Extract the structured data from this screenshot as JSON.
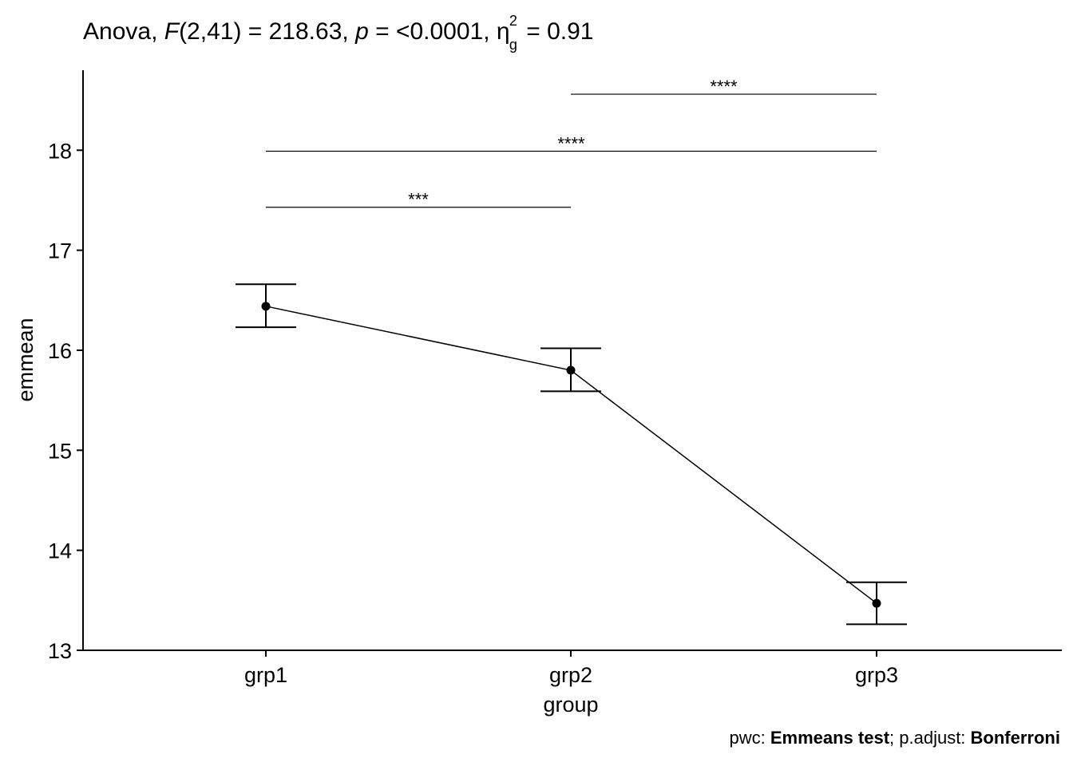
{
  "title": {
    "prefix": "Anova, ",
    "f_symbol": "F",
    "f_args": "(2,41) = 218.63, ",
    "p_symbol": "p",
    "p_value": " = <0.0001, ",
    "eta_symbol": "η",
    "eta_sup": "2",
    "eta_sub": "g",
    "eta_value": "= 0.91"
  },
  "caption": {
    "pwc_label": "pwc: ",
    "pwc_value": "Emmeans test",
    "sep": "; p.adjust: ",
    "adjust_value": "Bonferroni"
  },
  "chart_data": {
    "type": "line",
    "xlabel": "group",
    "ylabel": "emmean",
    "categories": [
      "grp1",
      "grp2",
      "grp3"
    ],
    "series": [
      {
        "values": [
          16.44,
          15.8,
          13.47
        ],
        "ci_lower": [
          16.23,
          15.59,
          13.26
        ],
        "ci_upper": [
          16.66,
          16.02,
          13.68
        ]
      }
    ],
    "ylim": [
      13,
      18.8
    ],
    "yticks": [
      13,
      14,
      15,
      16,
      17,
      18
    ],
    "grid": false,
    "significance": [
      {
        "from": "grp1",
        "to": "grp2",
        "y": 17.43,
        "label": "***"
      },
      {
        "from": "grp1",
        "to": "grp3",
        "y": 17.99,
        "label": "****"
      },
      {
        "from": "grp2",
        "to": "grp3",
        "y": 18.56,
        "label": "****"
      }
    ]
  }
}
